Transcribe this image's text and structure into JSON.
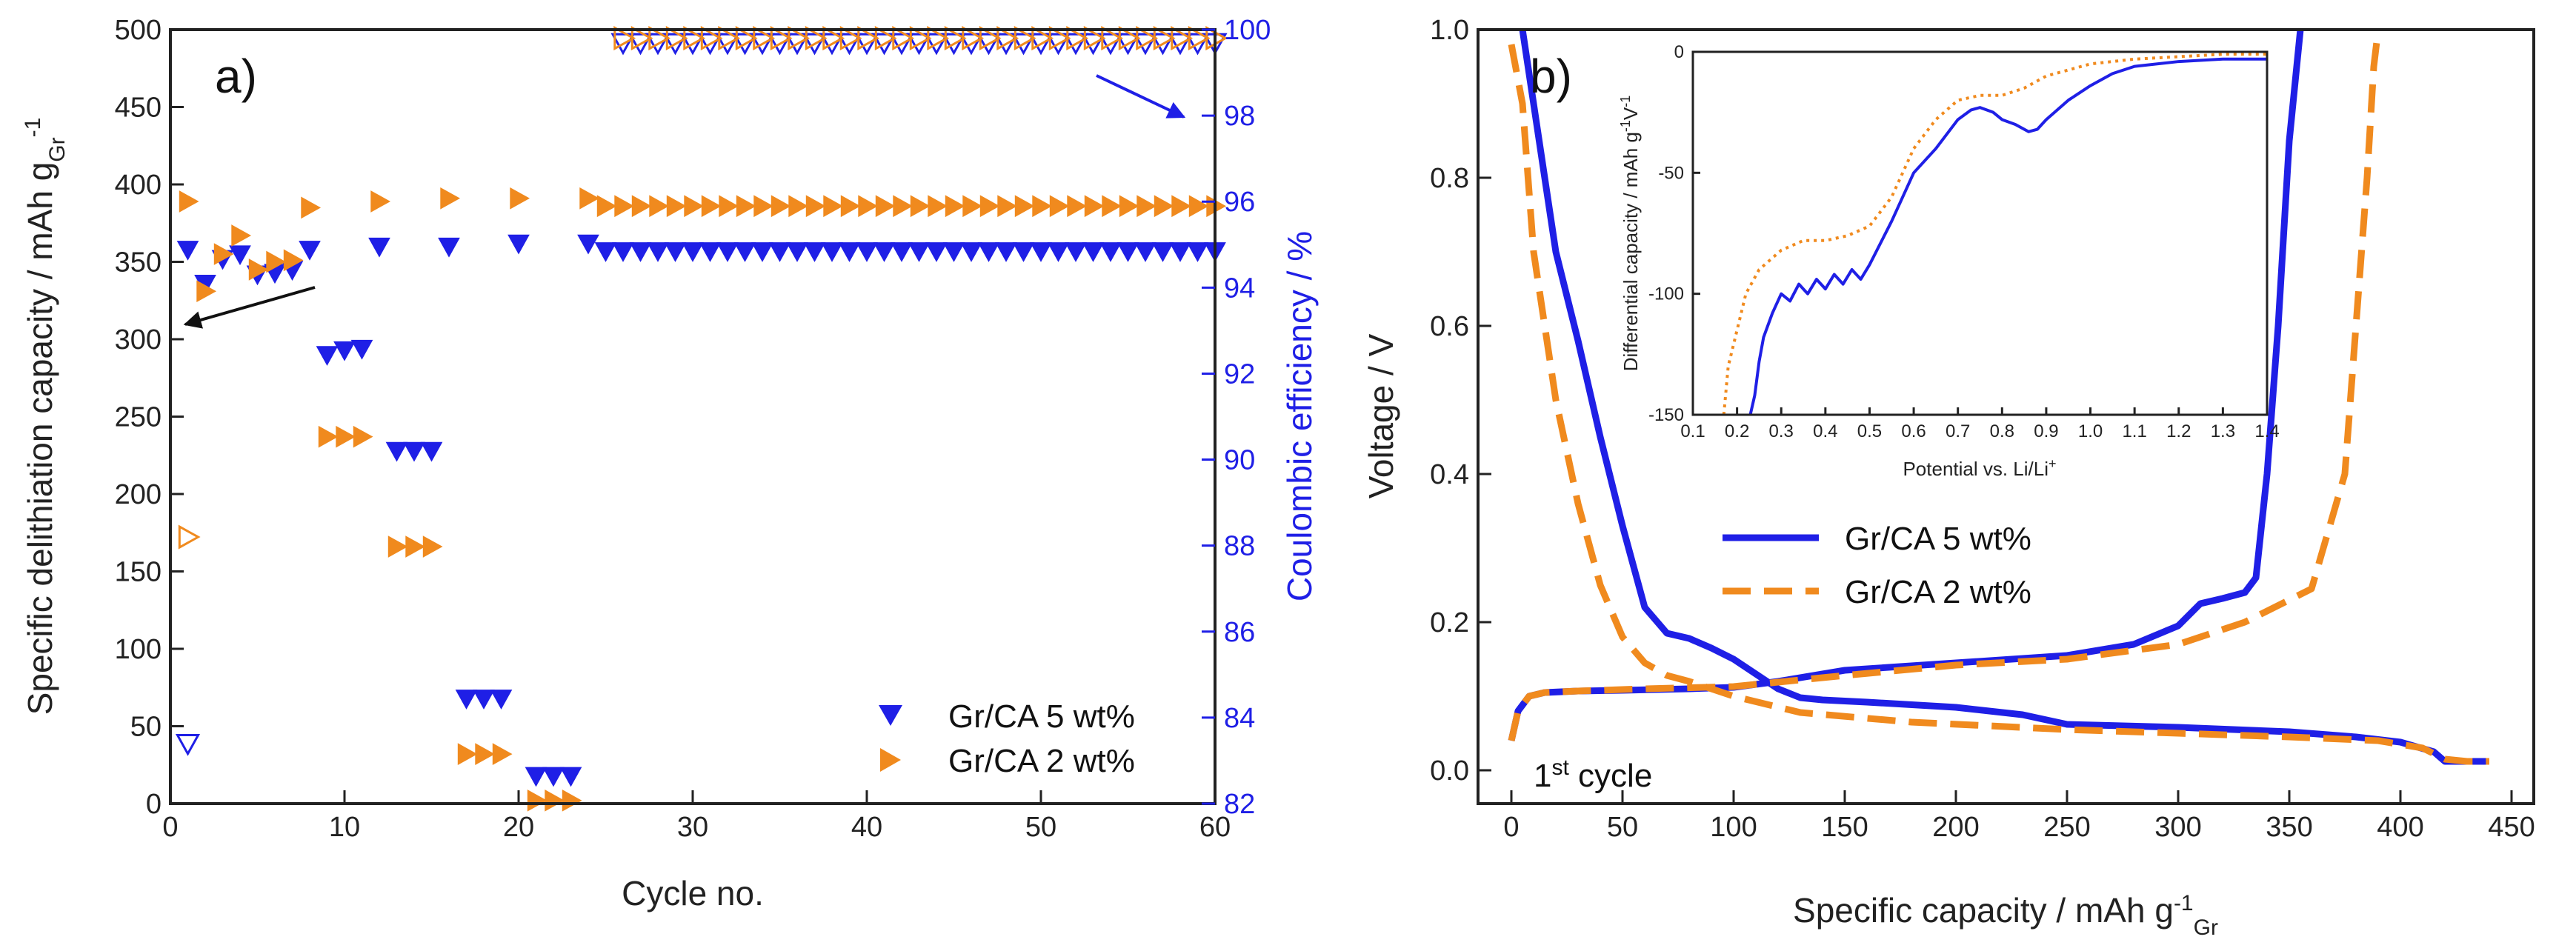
{
  "colors": {
    "blue": "#1f1fe6",
    "orange": "#f08a1e",
    "axis": "#222222"
  },
  "chart_data": [
    {
      "panel": "a)",
      "type": "scatter",
      "xlabel": "Cycle no.",
      "ylabel_left": "Specific delithiation capacity / mAh g",
      "ylabel_left_sub": "Gr",
      "ylabel_left_sup": "-1",
      "ylabel_right": "Coulombic efficiency / %",
      "xlim": [
        0,
        60
      ],
      "ylim_left": [
        0,
        500
      ],
      "ylim_right": [
        82,
        100
      ],
      "xticks": [
        0,
        10,
        20,
        30,
        40,
        50,
        60
      ],
      "yticks_left": [
        0,
        50,
        100,
        150,
        200,
        250,
        300,
        350,
        400,
        450,
        500
      ],
      "yticks_right": [
        82,
        84,
        86,
        88,
        90,
        92,
        94,
        96,
        98,
        100
      ],
      "legend_position": "bottom-right",
      "series": [
        {
          "name": "Gr/CA 5 wt%",
          "axis": "left",
          "marker": "filled-down-triangle",
          "x": [
            1,
            2,
            3,
            4,
            5,
            6,
            7,
            8,
            9,
            10,
            11,
            12,
            13,
            14,
            15,
            16,
            17,
            18,
            19,
            20,
            21,
            22,
            23,
            24,
            25,
            26,
            27,
            28,
            29,
            30,
            31,
            32,
            33,
            34,
            35,
            36,
            37,
            38,
            39,
            40,
            41,
            42,
            43,
            44,
            45,
            46,
            47,
            48,
            49,
            50,
            51,
            52,
            53,
            54,
            55,
            56,
            57,
            58,
            59,
            60
          ],
          "values": [
            358,
            336,
            352,
            355,
            342,
            343,
            345,
            358,
            290,
            293,
            294,
            360,
            228,
            228,
            228,
            360,
            68,
            68,
            68,
            362,
            18,
            18,
            18,
            362,
            357,
            357,
            357,
            357,
            357,
            357,
            357,
            357,
            357,
            357,
            357,
            357,
            357,
            357,
            357,
            357,
            357,
            357,
            357,
            357,
            357,
            357,
            357,
            357,
            357,
            357,
            357,
            357,
            357,
            357,
            357,
            357,
            357,
            357,
            357,
            357
          ]
        },
        {
          "name": "Gr/CA 2 wt%",
          "axis": "left",
          "marker": "filled-right-triangle",
          "x": [
            1,
            2,
            3,
            4,
            5,
            6,
            7,
            8,
            9,
            10,
            11,
            12,
            13,
            14,
            15,
            16,
            17,
            18,
            19,
            20,
            21,
            22,
            23,
            24,
            25,
            26,
            27,
            28,
            29,
            30,
            31,
            32,
            33,
            34,
            35,
            36,
            37,
            38,
            39,
            40,
            41,
            42,
            43,
            44,
            45,
            46,
            47,
            48,
            49,
            50,
            51,
            52,
            53,
            54,
            55,
            56,
            57,
            58,
            59,
            60
          ],
          "values": [
            389,
            331,
            355,
            367,
            345,
            350,
            351,
            385,
            237,
            237,
            237,
            389,
            166,
            166,
            166,
            391,
            32,
            32,
            32,
            391,
            2,
            2,
            2,
            391,
            386,
            386,
            386,
            386,
            386,
            386,
            386,
            386,
            386,
            386,
            386,
            386,
            386,
            386,
            386,
            386,
            386,
            386,
            386,
            386,
            386,
            386,
            386,
            386,
            386,
            386,
            386,
            386,
            386,
            386,
            386,
            386,
            386,
            386,
            386,
            386
          ]
        },
        {
          "name": "Gr/CA 5 wt% CE",
          "axis": "right",
          "marker": "open-down-triangle",
          "x": [
            1,
            26,
            27,
            28,
            29,
            30,
            31,
            32,
            33,
            34,
            35,
            36,
            37,
            38,
            39,
            40,
            41,
            42,
            43,
            44,
            45,
            46,
            47,
            48,
            49,
            50,
            51,
            52,
            53,
            54,
            55,
            56,
            57,
            58,
            59,
            60
          ],
          "values": [
            83.4,
            99.7,
            99.7,
            99.7,
            99.7,
            99.7,
            99.7,
            99.7,
            99.7,
            99.7,
            99.7,
            99.7,
            99.7,
            99.7,
            99.7,
            99.7,
            99.7,
            99.7,
            99.7,
            99.7,
            99.7,
            99.7,
            99.7,
            99.7,
            99.7,
            99.7,
            99.7,
            99.7,
            99.7,
            99.7,
            99.7,
            99.7,
            99.7,
            99.7,
            99.7,
            99.7
          ]
        },
        {
          "name": "Gr/CA 2 wt% CE",
          "axis": "right",
          "marker": "open-right-triangle",
          "x": [
            1,
            26,
            27,
            28,
            29,
            30,
            31,
            32,
            33,
            34,
            35,
            36,
            37,
            38,
            39,
            40,
            41,
            42,
            43,
            44,
            45,
            46,
            47,
            48,
            49,
            50,
            51,
            52,
            53,
            54,
            55,
            56,
            57,
            58,
            59,
            60
          ],
          "values": [
            88.2,
            99.8,
            99.8,
            99.8,
            99.8,
            99.8,
            99.8,
            99.8,
            99.8,
            99.8,
            99.8,
            99.8,
            99.8,
            99.8,
            99.8,
            99.8,
            99.8,
            99.8,
            99.8,
            99.8,
            99.8,
            99.8,
            99.8,
            99.8,
            99.8,
            99.8,
            99.8,
            99.8,
            99.8,
            99.8,
            99.8,
            99.8,
            99.8,
            99.8,
            99.8,
            99.8
          ]
        }
      ],
      "legend": [
        "Gr/CA 5 wt%",
        "Gr/CA 2 wt%"
      ]
    },
    {
      "panel": "b)",
      "type": "line",
      "xlabel": "Specific capacity / mAh g",
      "xlabel_sub": "Gr",
      "xlabel_sup": "-1",
      "ylabel": "Voltage / V",
      "xlim": [
        0,
        450
      ],
      "ylim": [
        0,
        1.0
      ],
      "xticks": [
        0,
        50,
        100,
        150,
        200,
        250,
        300,
        350,
        400,
        450
      ],
      "yticks": [
        "0.0",
        "0.2",
        "0.4",
        "0.6",
        "0.8",
        "1.0"
      ],
      "annotation": "1",
      "annotation_sup": "st",
      "annotation_rest": " cycle",
      "legend": [
        "Gr/CA 5 wt%",
        "Gr/CA 2 wt%"
      ],
      "legend_position": "center",
      "series": [
        {
          "name": "Gr/CA 5 wt% lithiation",
          "style": "solid",
          "x": [
            5,
            10,
            20,
            30,
            40,
            50,
            60,
            70,
            80,
            90,
            100,
            110,
            120,
            130,
            140,
            160,
            200,
            230,
            250,
            300,
            350,
            380,
            400,
            415,
            420,
            430,
            440
          ],
          "y": [
            1.0,
            0.9,
            0.7,
            0.58,
            0.45,
            0.33,
            0.22,
            0.185,
            0.178,
            0.165,
            0.15,
            0.13,
            0.11,
            0.098,
            0.095,
            0.092,
            0.085,
            0.075,
            0.062,
            0.058,
            0.052,
            0.045,
            0.038,
            0.025,
            0.012,
            0.012,
            0.012
          ]
        },
        {
          "name": "Gr/CA 5 wt% delithiation",
          "style": "solid",
          "x": [
            0,
            3,
            8,
            15,
            30,
            50,
            80,
            100,
            120,
            150,
            200,
            250,
            280,
            300,
            310,
            320,
            330,
            335,
            340,
            345,
            350,
            355
          ],
          "y": [
            0.04,
            0.08,
            0.1,
            0.105,
            0.107,
            0.108,
            0.11,
            0.112,
            0.12,
            0.135,
            0.145,
            0.155,
            0.17,
            0.195,
            0.225,
            0.232,
            0.24,
            0.26,
            0.4,
            0.6,
            0.85,
            1.0
          ]
        },
        {
          "name": "Gr/CA 2 wt% lithiation",
          "style": "dashed",
          "x": [
            0,
            5,
            10,
            20,
            30,
            40,
            50,
            60,
            70,
            80,
            90,
            100,
            130,
            180,
            250,
            300,
            350,
            390,
            410,
            420,
            430,
            440
          ],
          "y": [
            0.98,
            0.9,
            0.7,
            0.5,
            0.36,
            0.25,
            0.18,
            0.145,
            0.128,
            0.12,
            0.11,
            0.1,
            0.078,
            0.065,
            0.055,
            0.05,
            0.045,
            0.04,
            0.03,
            0.015,
            0.012,
            0.012
          ]
        },
        {
          "name": "Gr/CA 2 wt% delithiation",
          "style": "dashed",
          "x": [
            0,
            3,
            8,
            15,
            30,
            60,
            100,
            150,
            200,
            250,
            300,
            330,
            360,
            375,
            380,
            385,
            388,
            390
          ],
          "y": [
            0.04,
            0.08,
            0.1,
            0.105,
            0.107,
            0.11,
            0.113,
            0.128,
            0.142,
            0.15,
            0.17,
            0.2,
            0.245,
            0.4,
            0.6,
            0.8,
            0.95,
            1.0
          ]
        }
      ],
      "inset": {
        "type": "line",
        "xlabel": "Potential vs. Li/Li",
        "xlabel_sup": "+",
        "ylabel": "Differential capacity / mAh g",
        "ylabel_sup": "-1",
        "ylabel_rest": "V",
        "ylabel_sup2": "-1",
        "xlim": [
          0.1,
          1.4
        ],
        "ylim": [
          -150,
          0
        ],
        "xticks": [
          "0.1",
          "0.2",
          "0.3",
          "0.4",
          "0.5",
          "0.6",
          "0.7",
          "0.8",
          "0.9",
          "1.0",
          "1.1",
          "1.2",
          "1.3",
          "1.4"
        ],
        "yticks": [
          "-150",
          "-100",
          "-50",
          "0"
        ],
        "series": [
          {
            "name": "Gr/CA 5 wt%",
            "style": "solid",
            "x": [
              0.23,
              0.24,
              0.25,
              0.26,
              0.28,
              0.3,
              0.32,
              0.34,
              0.36,
              0.38,
              0.4,
              0.42,
              0.44,
              0.46,
              0.48,
              0.5,
              0.55,
              0.6,
              0.65,
              0.7,
              0.73,
              0.75,
              0.78,
              0.8,
              0.83,
              0.86,
              0.88,
              0.9,
              0.95,
              1.0,
              1.05,
              1.1,
              1.2,
              1.3,
              1.4
            ],
            "y": [
              -150,
              -142,
              -128,
              -118,
              -108,
              -100,
              -103,
              -96,
              -100,
              -94,
              -98,
              -92,
              -96,
              -90,
              -94,
              -88,
              -70,
              -50,
              -40,
              -28,
              -24,
              -23,
              -25,
              -28,
              -30,
              -33,
              -32,
              -28,
              -20,
              -14,
              -9,
              -6,
              -4,
              -3,
              -3
            ]
          },
          {
            "name": "Gr/CA 2 wt%",
            "style": "dotted",
            "x": [
              0.17,
              0.18,
              0.2,
              0.22,
              0.25,
              0.3,
              0.35,
              0.4,
              0.45,
              0.5,
              0.55,
              0.6,
              0.65,
              0.7,
              0.75,
              0.8,
              0.85,
              0.9,
              1.0,
              1.1,
              1.2,
              1.3,
              1.4
            ],
            "y": [
              -150,
              -130,
              -115,
              -100,
              -90,
              -82,
              -78,
              -78,
              -76,
              -72,
              -60,
              -40,
              -28,
              -20,
              -18,
              -18,
              -15,
              -10,
              -5,
              -3,
              -2,
              -1,
              -1
            ]
          }
        ]
      }
    }
  ]
}
